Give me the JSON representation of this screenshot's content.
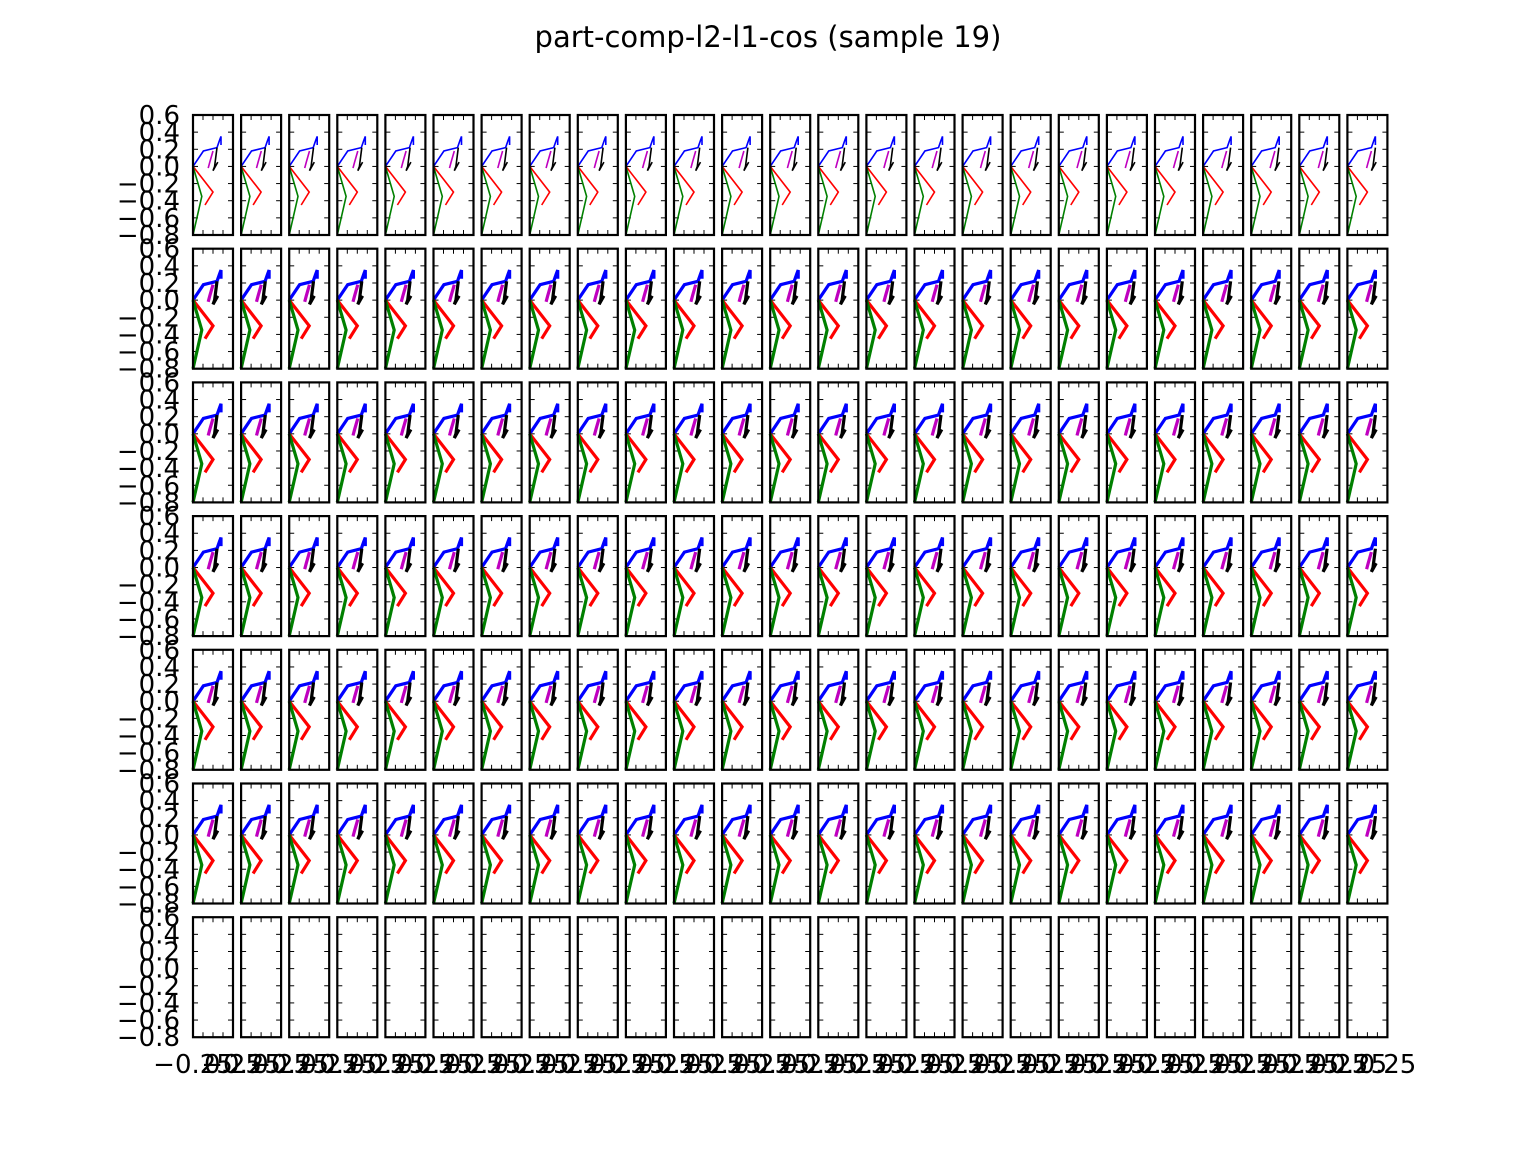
{
  "title": "part-comp-l2-l1-cos (sample 19)",
  "chart_data": {
    "type": "line",
    "title": "part-comp-l2-l1-cos (sample 19)",
    "layout": "grid of small-multiple stick-figure pose plots, 7 rows × 25 columns",
    "rows": 7,
    "cols": 25,
    "filled_rows": 6,
    "empty_rows": [
      7
    ],
    "ylim": [
      -0.8,
      0.6
    ],
    "xlim": [
      -0.25,
      0.25
    ],
    "y_tick_labels": [
      "0.6",
      "0.4",
      "0.2",
      "0.0",
      "−0.2",
      "−0.4",
      "−0.6",
      "−0.8"
    ],
    "x_tick_labels": [
      "−0.25",
      "0.25"
    ],
    "grid": false,
    "series": [
      {
        "color": "#0000ff",
        "points": [
          [
            -0.25,
            0.0
          ],
          [
            -0.12,
            0.18
          ],
          [
            0.05,
            0.22
          ],
          [
            0.08,
            0.3
          ],
          [
            0.1,
            0.35
          ],
          [
            0.1,
            0.25
          ]
        ]
      },
      {
        "color": "#bf00bf",
        "points": [
          [
            0.0,
            0.18
          ],
          [
            -0.04,
            0.05
          ],
          [
            -0.06,
            -0.02
          ]
        ]
      },
      {
        "color": "#000000",
        "points": [
          [
            0.05,
            0.22
          ],
          [
            0.02,
            0.0
          ],
          [
            0.0,
            -0.05
          ],
          [
            0.06,
            0.05
          ]
        ]
      },
      {
        "color": "#ff0000",
        "points": [
          [
            -0.25,
            0.0
          ],
          [
            0.0,
            -0.3
          ],
          [
            -0.1,
            -0.45
          ]
        ]
      },
      {
        "color": "#008000",
        "points": [
          [
            -0.25,
            0.0
          ],
          [
            -0.14,
            -0.35
          ],
          [
            -0.25,
            -0.8
          ]
        ]
      }
    ],
    "colors": {
      "blue": "#0000ff",
      "magenta": "#bf00bf",
      "black": "#000000",
      "red": "#ff0000",
      "green": "#008000"
    }
  }
}
